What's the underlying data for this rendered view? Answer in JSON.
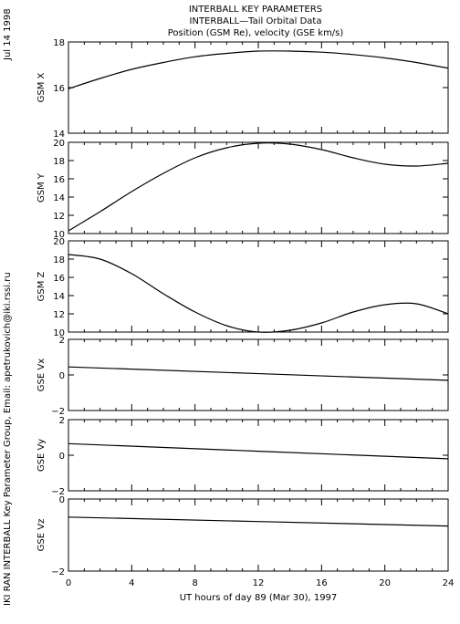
{
  "header": {
    "date": "Jul 14 1998",
    "credit": "IKI RAN INTERBALL Key Parameter Group, Email: apetrukovich@iki.rssi.ru",
    "title_line1": "INTERBALL KEY PARAMETERS",
    "title_line2": "INTERBALL—Tail Orbital Data",
    "title_line3": "Position (GSM Re), velocity (GSE km/s)"
  },
  "chart_data": [
    {
      "type": "line",
      "ylabel": "GSM X",
      "ylim": [
        14,
        18
      ],
      "yticks": [
        14,
        16,
        18
      ],
      "x": [
        0,
        2,
        4,
        6,
        8,
        10,
        12,
        14,
        16,
        18,
        20,
        22,
        24
      ],
      "series": [
        {
          "values": [
            15.95,
            16.4,
            16.8,
            17.1,
            17.35,
            17.5,
            17.6,
            17.6,
            17.55,
            17.45,
            17.3,
            17.1,
            16.85
          ]
        }
      ]
    },
    {
      "type": "line",
      "ylabel": "GSM Y",
      "ylim": [
        10,
        20
      ],
      "yticks": [
        10,
        12,
        14,
        16,
        18,
        20
      ],
      "x": [
        0,
        2,
        4,
        6,
        8,
        10,
        12,
        14,
        16,
        18,
        20,
        22,
        24
      ],
      "series": [
        {
          "values": [
            10.3,
            12.4,
            14.6,
            16.6,
            18.3,
            19.4,
            19.9,
            19.8,
            19.2,
            18.3,
            17.6,
            17.4,
            17.7
          ]
        }
      ]
    },
    {
      "type": "line",
      "ylabel": "GSM Z",
      "ylim": [
        10,
        20
      ],
      "yticks": [
        10,
        12,
        14,
        16,
        18,
        20
      ],
      "x": [
        0,
        2,
        4,
        6,
        8,
        10,
        12,
        14,
        16,
        18,
        20,
        22,
        24
      ],
      "series": [
        {
          "values": [
            18.5,
            18.0,
            16.4,
            14.2,
            12.2,
            10.7,
            10.0,
            10.2,
            11.0,
            12.2,
            13.0,
            13.1,
            12.0
          ]
        }
      ]
    },
    {
      "type": "line",
      "ylabel": "GSE Vx",
      "ylim": [
        -2,
        2
      ],
      "yticks": [
        -2,
        0,
        2
      ],
      "x": [
        0,
        24
      ],
      "series": [
        {
          "values": [
            0.45,
            -0.3
          ]
        }
      ]
    },
    {
      "type": "line",
      "ylabel": "GSE Vy",
      "ylim": [
        -2,
        2
      ],
      "yticks": [
        -2,
        0,
        2
      ],
      "x": [
        0,
        24
      ],
      "series": [
        {
          "values": [
            0.65,
            -0.2
          ]
        }
      ]
    },
    {
      "type": "line",
      "ylabel": "GSE Vz",
      "ylim": [
        -2,
        0
      ],
      "yticks": [
        -2,
        0
      ],
      "x": [
        0,
        24
      ],
      "series": [
        {
          "values": [
            -0.5,
            -0.75
          ]
        }
      ]
    }
  ],
  "xaxis": {
    "ticks": [
      0,
      4,
      8,
      12,
      16,
      20,
      24
    ],
    "minor_step": 1,
    "xlim": [
      0,
      24
    ],
    "xlabel": "UT hours of day  89 (Mar 30), 1997"
  }
}
